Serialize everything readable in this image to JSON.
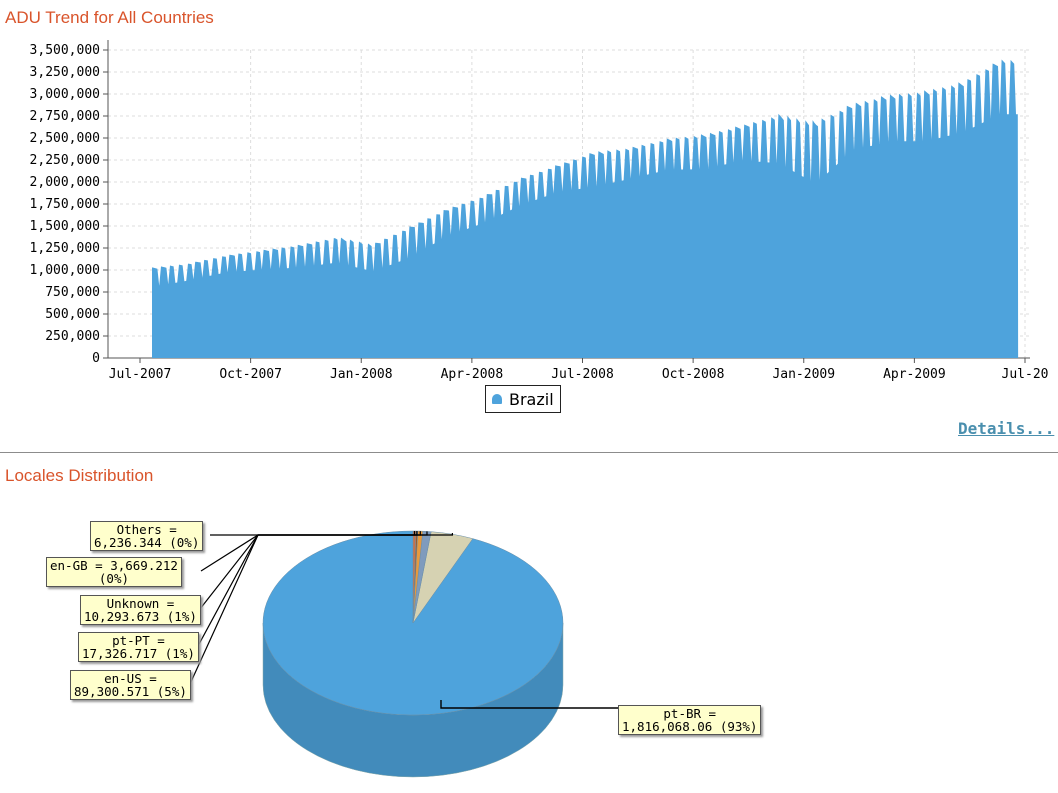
{
  "sections": {
    "adu_title": "ADU Trend for All Countries",
    "locales_title": "Locales Distribution",
    "details_link": "Details..."
  },
  "chart_data": [
    {
      "type": "area",
      "title": "ADU Trend for All Countries",
      "color": "#4ea3dc",
      "ylim": [
        0,
        3500000
      ],
      "y_ticks": [
        "0",
        "250,000",
        "500,000",
        "750,000",
        "1,000,000",
        "1,250,000",
        "1,500,000",
        "1,750,000",
        "2,000,000",
        "2,250,000",
        "2,500,000",
        "2,750,000",
        "3,000,000",
        "3,250,000",
        "3,500,000"
      ],
      "x_ticks": [
        "Jul-2007",
        "Oct-2007",
        "Jan-2008",
        "Apr-2008",
        "Jul-2008",
        "Oct-2008",
        "Jan-2009",
        "Apr-2009",
        "Jul-20"
      ],
      "grid": true,
      "legend_placement": "bottom-center",
      "series": [
        {
          "name": "Brazil",
          "x_start": "Jul-2007",
          "x_end": "Jun-2009",
          "weekly_points": [
            {
              "x": "Jul-2007",
              "peak": 1030000,
              "trough": 780000
            },
            {
              "x": "Aug-2007",
              "peak": 1080000,
              "trough": 860000
            },
            {
              "x": "Sep-2007",
              "peak": 1170000,
              "trough": 950000
            },
            {
              "x": "Oct-2007",
              "peak": 1230000,
              "trough": 980000
            },
            {
              "x": "Nov-2007",
              "peak": 1290000,
              "trough": 1000000
            },
            {
              "x": "Dec-2007",
              "peak": 1380000,
              "trough": 1050000
            },
            {
              "x": "Jan-2008",
              "peak": 1300000,
              "trough": 950000
            },
            {
              "x": "Feb-2008",
              "peak": 1500000,
              "trough": 1100000
            },
            {
              "x": "Mar-2008",
              "peak": 1700000,
              "trough": 1350000
            },
            {
              "x": "Apr-2008",
              "peak": 1850000,
              "trough": 1500000
            },
            {
              "x": "May-2008",
              "peak": 2050000,
              "trough": 1700000
            },
            {
              "x": "Jun-2008",
              "peak": 2200000,
              "trough": 1850000
            },
            {
              "x": "Jul-2008",
              "peak": 2350000,
              "trough": 1900000
            },
            {
              "x": "Aug-2008",
              "peak": 2400000,
              "trough": 2000000
            },
            {
              "x": "Sep-2008",
              "peak": 2500000,
              "trough": 2100000
            },
            {
              "x": "Oct-2008",
              "peak": 2550000,
              "trough": 2100000
            },
            {
              "x": "Nov-2008",
              "peak": 2650000,
              "trough": 2200000
            },
            {
              "x": "Dec-2008",
              "peak": 2780000,
              "trough": 2150000
            },
            {
              "x": "Jan-2009",
              "peak": 2700000,
              "trough": 1900000
            },
            {
              "x": "Feb-2009",
              "peak": 2900000,
              "trough": 2300000
            },
            {
              "x": "Mar-2009",
              "peak": 3000000,
              "trough": 2400000
            },
            {
              "x": "Apr-2009",
              "peak": 3050000,
              "trough": 2400000
            },
            {
              "x": "May-2009",
              "peak": 3150000,
              "trough": 2500000
            },
            {
              "x": "Jun-2009",
              "peak": 3400000,
              "trough": 2700000
            }
          ]
        }
      ]
    },
    {
      "type": "pie",
      "title": "Locales Distribution",
      "slices": [
        {
          "label": "pt-BR",
          "value": 1816068.06,
          "display": "pt-BR =\n1,816,068.06 (93%)",
          "color": "#4ea3dc"
        },
        {
          "label": "en-US",
          "value": 89300.571,
          "display": "en-US =\n89,300.571 (5%)",
          "color": "#d6d2b2"
        },
        {
          "label": "pt-PT",
          "value": 17326.717,
          "display": "pt-PT =\n17,326.717 (1%)",
          "color": "#7f9bbd"
        },
        {
          "label": "Unknown",
          "value": 10293.673,
          "display": "Unknown =\n10,293.673 (1%)",
          "color": "#e89a3c"
        },
        {
          "label": "en-GB",
          "value": 3669.212,
          "display": "en-GB = 3,669.212\n(0%)",
          "color": "#9a5b2a"
        },
        {
          "label": "Others",
          "value": 6236.344,
          "display": "Others =\n6,236.344 (0%)",
          "color": "#c7724a"
        }
      ]
    }
  ]
}
